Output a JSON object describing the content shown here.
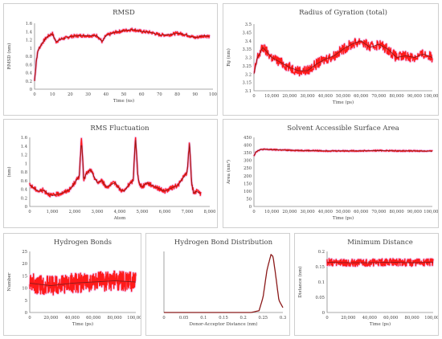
{
  "chart_data": [
    {
      "type": "line",
      "title": "RMSD",
      "xlabel": "Time (ns)",
      "ylabel": "RMSD (nm)",
      "xlim": [
        0,
        100
      ],
      "ylim": [
        0,
        1.6
      ],
      "xticks": [
        "0",
        "10",
        "20",
        "30",
        "40",
        "50",
        "60",
        "70",
        "80",
        "90",
        "100"
      ],
      "yticks": [
        "0",
        "0.2",
        "0.4",
        "0.6",
        "0.8",
        "1",
        "1.2",
        "1.4",
        "1.6"
      ],
      "grid": false,
      "series": [
        {
          "x": [
            0,
            1,
            2,
            4,
            6,
            8,
            10,
            12,
            15,
            18,
            20,
            25,
            30,
            35,
            38,
            40,
            45,
            50,
            55,
            60,
            65,
            70,
            75,
            80,
            85,
            90,
            95,
            98
          ],
          "values": [
            0.2,
            0.7,
            0.95,
            1.1,
            1.22,
            1.3,
            1.35,
            1.15,
            1.22,
            1.25,
            1.28,
            1.3,
            1.3,
            1.3,
            1.15,
            1.3,
            1.38,
            1.42,
            1.45,
            1.4,
            1.38,
            1.32,
            1.32,
            1.36,
            1.32,
            1.25,
            1.3,
            1.28
          ],
          "noise": 0.04
        }
      ]
    },
    {
      "type": "line",
      "title": "Radius of Gyration (total)",
      "xlabel": "Time (ps)",
      "ylabel": "Rg (nm)",
      "xlim": [
        0,
        100000
      ],
      "ylim": [
        3.1,
        3.5
      ],
      "xticks": [
        "0",
        "10,000",
        "20,000",
        "30,000",
        "40,000",
        "50,000",
        "60,000",
        "70,000",
        "80,000",
        "90,000",
        "100,000"
      ],
      "yticks": [
        "3.1",
        "3.15",
        "3.2",
        "3.25",
        "3.3",
        "3.35",
        "3.4",
        "3.45",
        "3.5"
      ],
      "grid": false,
      "series": [
        {
          "x": [
            0,
            2000,
            5000,
            10000,
            15000,
            20000,
            25000,
            30000,
            35000,
            40000,
            45000,
            50000,
            55000,
            60000,
            65000,
            70000,
            75000,
            80000,
            85000,
            90000,
            95000,
            100000
          ],
          "values": [
            3.2,
            3.3,
            3.36,
            3.3,
            3.27,
            3.24,
            3.22,
            3.22,
            3.26,
            3.29,
            3.31,
            3.35,
            3.38,
            3.4,
            3.36,
            3.38,
            3.35,
            3.3,
            3.31,
            3.3,
            3.32,
            3.3
          ],
          "noise": 0.03
        }
      ]
    },
    {
      "type": "line",
      "title": "RMS Fluctuation",
      "xlabel": "Atom",
      "ylabel": "(nm)",
      "xlim": [
        0,
        8000
      ],
      "ylim": [
        0,
        1.6
      ],
      "xticks": [
        "0",
        "1,000",
        "2,000",
        "3,000",
        "4,000",
        "5,000",
        "6,000",
        "7,000",
        "8,000"
      ],
      "yticks": [
        "0",
        "0.2",
        "0.4",
        "0.6",
        "0.8",
        "1",
        "1.2",
        "1.4",
        "1.6"
      ],
      "grid": false,
      "series": [
        {
          "x": [
            0,
            200,
            400,
            600,
            800,
            1000,
            1200,
            1500,
            1800,
            2000,
            2200,
            2300,
            2400,
            2500,
            2700,
            2900,
            3000,
            3200,
            3400,
            3600,
            3800,
            4000,
            4200,
            4400,
            4600,
            4700,
            4800,
            4900,
            5000,
            5200,
            5400,
            5600,
            5800,
            6000,
            6200,
            6400,
            6600,
            6800,
            7000,
            7100,
            7200,
            7300,
            7400,
            7600
          ],
          "values": [
            0.5,
            0.42,
            0.35,
            0.38,
            0.3,
            0.25,
            0.28,
            0.32,
            0.4,
            0.55,
            0.7,
            1.58,
            0.6,
            0.75,
            0.85,
            0.65,
            0.55,
            0.6,
            0.45,
            0.5,
            0.55,
            0.4,
            0.35,
            0.5,
            0.6,
            1.65,
            0.7,
            0.5,
            0.45,
            0.55,
            0.5,
            0.45,
            0.4,
            0.35,
            0.4,
            0.45,
            0.5,
            0.65,
            0.8,
            1.5,
            0.5,
            0.3,
            0.35,
            0.3
          ],
          "noise": 0.05
        }
      ]
    },
    {
      "type": "line",
      "title": "Solvent Accessible Surface Area",
      "xlabel": "Time (ps)",
      "ylabel": "Area (nm²)",
      "xlim": [
        0,
        100000
      ],
      "ylim": [
        0,
        450
      ],
      "xticks": [
        "0",
        "10,000",
        "20,000",
        "30,000",
        "40,000",
        "50,000",
        "60,000",
        "70,000",
        "80,000",
        "90,000",
        "100,000"
      ],
      "yticks": [
        "0",
        "50",
        "100",
        "150",
        "200",
        "250",
        "300",
        "350",
        "400",
        "450"
      ],
      "grid": false,
      "series": [
        {
          "x": [
            0,
            1000,
            3000,
            5000,
            10000,
            20000,
            30000,
            40000,
            50000,
            60000,
            70000,
            80000,
            90000,
            100000
          ],
          "values": [
            330,
            355,
            368,
            372,
            370,
            366,
            364,
            362,
            362,
            362,
            364,
            362,
            362,
            360
          ],
          "noise": 4
        }
      ]
    },
    {
      "type": "line",
      "title": "Hydrogen Bonds",
      "xlabel": "Time (ps)",
      "ylabel": "Number",
      "xlim": [
        0,
        100000
      ],
      "ylim": [
        0,
        25
      ],
      "xticks": [
        "0",
        "20,000",
        "40,000",
        "60,000",
        "80,000",
        "100,000"
      ],
      "yticks": [
        "0",
        "5",
        "10",
        "15",
        "20",
        "25"
      ],
      "grid": false,
      "series": [
        {
          "x": [
            0,
            20000,
            40000,
            60000,
            80000,
            100000
          ],
          "values": [
            12,
            11,
            12,
            12.5,
            13,
            12.5
          ],
          "noise": 4
        }
      ]
    },
    {
      "type": "line",
      "title": "Hydrogen Bond Distribution",
      "xlabel": "Donor-Acceptor Distance (nm)",
      "ylabel": "",
      "xlim": [
        0,
        0.3
      ],
      "ylim": [
        0,
        1
      ],
      "xticks": [
        "0",
        "0.05",
        "0.1",
        "0.15",
        "0.2",
        "0.25",
        "0.3"
      ],
      "yticks": [],
      "grid": false,
      "series": [
        {
          "x": [
            0,
            0.22,
            0.24,
            0.25,
            0.26,
            0.27,
            0.275,
            0.28,
            0.29,
            0.3
          ],
          "values": [
            0,
            0,
            0.03,
            0.25,
            0.7,
            0.95,
            0.92,
            0.7,
            0.2,
            0.08
          ],
          "noise": 0
        }
      ]
    },
    {
      "type": "line",
      "title": "Minimum Distance",
      "xlabel": "Time (ps)",
      "ylabel": "Distance (nm)",
      "xlim": [
        0,
        100000
      ],
      "ylim": [
        0,
        0.2
      ],
      "xticks": [
        "0",
        "20,000",
        "40,000",
        "60,000",
        "80,000",
        "100,000"
      ],
      "yticks": [
        "0",
        "0.05",
        "0.1",
        "0.15",
        "0.2"
      ],
      "grid": false,
      "series": [
        {
          "x": [
            0,
            20000,
            40000,
            60000,
            80000,
            100000
          ],
          "values": [
            0.165,
            0.163,
            0.163,
            0.165,
            0.163,
            0.165
          ],
          "noise": 0.012
        }
      ]
    }
  ],
  "colors": {
    "line": "#8b1a1a",
    "band": "#ff1a1a",
    "halo": "#f2c6f2",
    "axis": "#8c8c8c"
  }
}
